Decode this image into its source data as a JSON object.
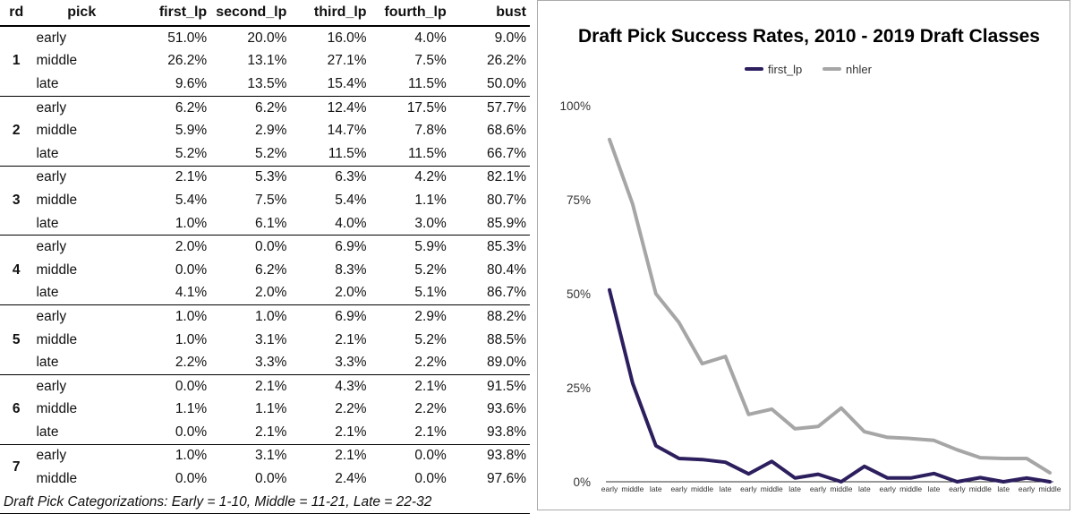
{
  "table": {
    "headers": [
      "rd",
      "pick",
      "first_lp",
      "second_lp",
      "third_lp",
      "fourth_lp",
      "bust"
    ],
    "rounds": [
      {
        "rd": "1",
        "rows": [
          {
            "pick": "early",
            "vals": [
              "51.0%",
              "20.0%",
              "16.0%",
              "4.0%",
              "9.0%"
            ]
          },
          {
            "pick": "middle",
            "vals": [
              "26.2%",
              "13.1%",
              "27.1%",
              "7.5%",
              "26.2%"
            ]
          },
          {
            "pick": "late",
            "vals": [
              "9.6%",
              "13.5%",
              "15.4%",
              "11.5%",
              "50.0%"
            ]
          }
        ]
      },
      {
        "rd": "2",
        "rows": [
          {
            "pick": "early",
            "vals": [
              "6.2%",
              "6.2%",
              "12.4%",
              "17.5%",
              "57.7%"
            ]
          },
          {
            "pick": "middle",
            "vals": [
              "5.9%",
              "2.9%",
              "14.7%",
              "7.8%",
              "68.6%"
            ]
          },
          {
            "pick": "late",
            "vals": [
              "5.2%",
              "5.2%",
              "11.5%",
              "11.5%",
              "66.7%"
            ]
          }
        ]
      },
      {
        "rd": "3",
        "rows": [
          {
            "pick": "early",
            "vals": [
              "2.1%",
              "5.3%",
              "6.3%",
              "4.2%",
              "82.1%"
            ]
          },
          {
            "pick": "middle",
            "vals": [
              "5.4%",
              "7.5%",
              "5.4%",
              "1.1%",
              "80.7%"
            ]
          },
          {
            "pick": "late",
            "vals": [
              "1.0%",
              "6.1%",
              "4.0%",
              "3.0%",
              "85.9%"
            ]
          }
        ]
      },
      {
        "rd": "4",
        "rows": [
          {
            "pick": "early",
            "vals": [
              "2.0%",
              "0.0%",
              "6.9%",
              "5.9%",
              "85.3%"
            ]
          },
          {
            "pick": "middle",
            "vals": [
              "0.0%",
              "6.2%",
              "8.3%",
              "5.2%",
              "80.4%"
            ]
          },
          {
            "pick": "late",
            "vals": [
              "4.1%",
              "2.0%",
              "2.0%",
              "5.1%",
              "86.7%"
            ]
          }
        ]
      },
      {
        "rd": "5",
        "rows": [
          {
            "pick": "early",
            "vals": [
              "1.0%",
              "1.0%",
              "6.9%",
              "2.9%",
              "88.2%"
            ]
          },
          {
            "pick": "middle",
            "vals": [
              "1.0%",
              "3.1%",
              "2.1%",
              "5.2%",
              "88.5%"
            ]
          },
          {
            "pick": "late",
            "vals": [
              "2.2%",
              "3.3%",
              "3.3%",
              "2.2%",
              "89.0%"
            ]
          }
        ]
      },
      {
        "rd": "6",
        "rows": [
          {
            "pick": "early",
            "vals": [
              "0.0%",
              "2.1%",
              "4.3%",
              "2.1%",
              "91.5%"
            ]
          },
          {
            "pick": "middle",
            "vals": [
              "1.1%",
              "1.1%",
              "2.2%",
              "2.2%",
              "93.6%"
            ]
          },
          {
            "pick": "late",
            "vals": [
              "0.0%",
              "2.1%",
              "2.1%",
              "2.1%",
              "93.8%"
            ]
          }
        ]
      },
      {
        "rd": "7",
        "rows": [
          {
            "pick": "early",
            "vals": [
              "1.0%",
              "3.1%",
              "2.1%",
              "0.0%",
              "93.8%"
            ]
          },
          {
            "pick": "middle",
            "vals": [
              "0.0%",
              "0.0%",
              "2.4%",
              "0.0%",
              "97.6%"
            ]
          }
        ]
      }
    ],
    "note": "Draft Pick Categorizations: Early = 1-10, Middle = 11-21, Late = 22-32"
  },
  "chart_data": {
    "type": "line",
    "title": "Draft Pick Success Rates, 2010 - 2019 Draft Classes",
    "categories": [
      "early",
      "middle",
      "late",
      "early",
      "middle",
      "late",
      "early",
      "middle",
      "late",
      "early",
      "middle",
      "late",
      "early",
      "middle",
      "late",
      "early",
      "middle",
      "late",
      "early",
      "middle"
    ],
    "series": [
      {
        "name": "first_lp",
        "color": "#2d1f5e",
        "values": [
          51.0,
          26.2,
          9.6,
          6.2,
          5.9,
          5.2,
          2.1,
          5.4,
          1.0,
          2.0,
          0.0,
          4.1,
          1.0,
          1.0,
          2.2,
          0.0,
          1.1,
          0.0,
          1.0,
          0.0
        ]
      },
      {
        "name": "nhler",
        "color": "#a6a6a6",
        "values": [
          91.0,
          73.8,
          50.0,
          42.3,
          31.4,
          33.3,
          17.9,
          19.3,
          14.1,
          14.7,
          19.6,
          13.3,
          11.8,
          11.5,
          11.0,
          8.5,
          6.4,
          6.2,
          6.2,
          2.4
        ]
      }
    ],
    "yticks": [
      0,
      25,
      50,
      75,
      100
    ],
    "yticklabels": [
      "0%",
      "25%",
      "50%",
      "75%",
      "100%"
    ],
    "ylim": [
      0,
      100
    ],
    "legend": "top",
    "grid": false
  }
}
